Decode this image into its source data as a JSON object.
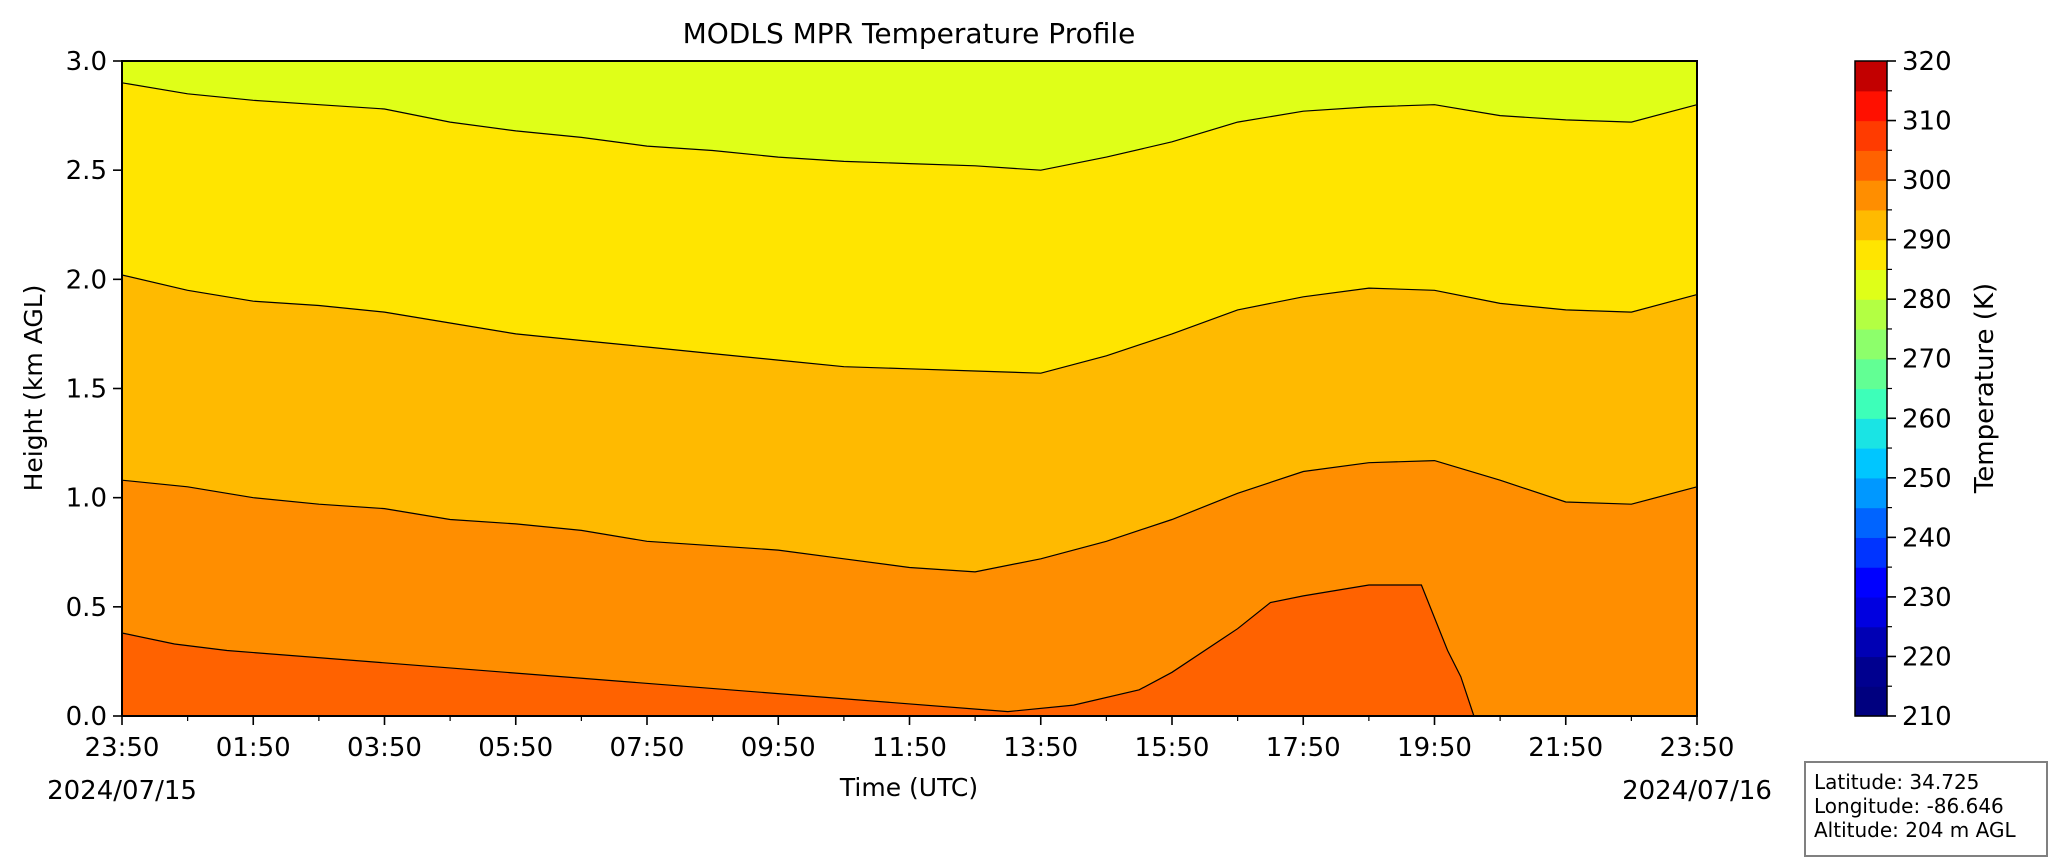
{
  "chart_data": {
    "type": "heatmap",
    "title": "MODLS MPR Temperature Profile",
    "xlabel": "Time (UTC)",
    "ylabel": "Height (km AGL)",
    "x_tick_labels": [
      "23:50",
      "01:50",
      "03:50",
      "05:50",
      "07:50",
      "09:50",
      "11:50",
      "13:50",
      "15:50",
      "17:50",
      "19:50",
      "21:50",
      "23:50"
    ],
    "x_tick_hours": [
      0,
      2,
      4,
      6,
      8,
      10,
      12,
      14,
      16,
      18,
      20,
      22,
      24
    ],
    "xlim_hours": [
      0,
      24
    ],
    "start_date": "2024/07/15",
    "end_date": "2024/07/16",
    "y_ticks": [
      0.0,
      0.5,
      1.0,
      1.5,
      2.0,
      2.5,
      3.0
    ],
    "ylim": [
      0.0,
      3.0
    ],
    "colorbar": {
      "label": "Temperature (K)",
      "range": [
        210,
        320
      ],
      "step": 5,
      "tick_values": [
        210,
        220,
        230,
        240,
        250,
        260,
        270,
        280,
        290,
        300,
        310,
        320
      ],
      "colors": [
        "#00007f",
        "#00008f",
        "#0000b4",
        "#0000e0",
        "#0000ff",
        "#0034ff",
        "#0064ff",
        "#0098ff",
        "#00c6ff",
        "#1ae4e4",
        "#3dffb9",
        "#62ff94",
        "#8dff6b",
        "#b3ff43",
        "#dfff18",
        "#ffe500",
        "#ffba00",
        "#ff8e00",
        "#ff6200",
        "#ff3b00",
        "#ff1000",
        "#c20000"
      ]
    },
    "contour_levels_K": [
      285,
      290,
      295,
      300
    ],
    "contours": [
      {
        "level": 285,
        "heights": [
          [
            0,
            2.9
          ],
          [
            1,
            2.85
          ],
          [
            2,
            2.82
          ],
          [
            3,
            2.8
          ],
          [
            4,
            2.78
          ],
          [
            5,
            2.72
          ],
          [
            6,
            2.68
          ],
          [
            7,
            2.65
          ],
          [
            8,
            2.61
          ],
          [
            9,
            2.59
          ],
          [
            10,
            2.56
          ],
          [
            11,
            2.54
          ],
          [
            12,
            2.53
          ],
          [
            13,
            2.52
          ],
          [
            14,
            2.5
          ],
          [
            15,
            2.56
          ],
          [
            16,
            2.63
          ],
          [
            17,
            2.72
          ],
          [
            18,
            2.77
          ],
          [
            19,
            2.79
          ],
          [
            20,
            2.8
          ],
          [
            21,
            2.75
          ],
          [
            22,
            2.73
          ],
          [
            23,
            2.72
          ],
          [
            24,
            2.8
          ]
        ]
      },
      {
        "level": 290,
        "heights": [
          [
            0,
            2.02
          ],
          [
            1,
            1.95
          ],
          [
            2,
            1.9
          ],
          [
            3,
            1.88
          ],
          [
            4,
            1.85
          ],
          [
            5,
            1.8
          ],
          [
            6,
            1.75
          ],
          [
            7,
            1.72
          ],
          [
            8,
            1.69
          ],
          [
            9,
            1.66
          ],
          [
            10,
            1.63
          ],
          [
            11,
            1.6
          ],
          [
            12,
            1.59
          ],
          [
            13,
            1.58
          ],
          [
            14,
            1.57
          ],
          [
            15,
            1.65
          ],
          [
            16,
            1.75
          ],
          [
            17,
            1.86
          ],
          [
            18,
            1.92
          ],
          [
            19,
            1.96
          ],
          [
            20,
            1.95
          ],
          [
            21,
            1.89
          ],
          [
            22,
            1.86
          ],
          [
            23,
            1.85
          ],
          [
            24,
            1.93
          ]
        ]
      },
      {
        "level": 295,
        "heights": [
          [
            0,
            1.08
          ],
          [
            1,
            1.05
          ],
          [
            2,
            1.0
          ],
          [
            3,
            0.97
          ],
          [
            4,
            0.95
          ],
          [
            5,
            0.9
          ],
          [
            6,
            0.88
          ],
          [
            7,
            0.85
          ],
          [
            8,
            0.8
          ],
          [
            9,
            0.78
          ],
          [
            10,
            0.76
          ],
          [
            11,
            0.72
          ],
          [
            12,
            0.68
          ],
          [
            13,
            0.66
          ],
          [
            14,
            0.72
          ],
          [
            15,
            0.8
          ],
          [
            16,
            0.9
          ],
          [
            17,
            1.02
          ],
          [
            18,
            1.12
          ],
          [
            19,
            1.16
          ],
          [
            20,
            1.17
          ],
          [
            21,
            1.08
          ],
          [
            22,
            0.98
          ],
          [
            23,
            0.97
          ],
          [
            24,
            1.05
          ]
        ]
      },
      {
        "level": 300,
        "heights": [
          [
            0,
            0.38
          ],
          [
            0.8,
            0.33
          ],
          [
            1.6,
            0.3
          ],
          [
            13.5,
            0.02
          ],
          [
            14.5,
            0.05
          ],
          [
            15.5,
            0.12
          ],
          [
            16,
            0.2
          ],
          [
            17,
            0.4
          ],
          [
            17.5,
            0.52
          ],
          [
            18,
            0.55
          ],
          [
            19,
            0.6
          ],
          [
            19.8,
            0.6
          ],
          [
            20.2,
            0.3
          ],
          [
            20.4,
            0.18
          ],
          [
            20.6,
            0.0
          ]
        ]
      }
    ],
    "band_temperatures_K": [
      302.5,
      297.5,
      292.5,
      287.5,
      282.5
    ]
  },
  "info": {
    "latitude": "Latitude: 34.725",
    "longitude": "Longitude: -86.646",
    "altitude": "Altitude: 204 m AGL"
  }
}
